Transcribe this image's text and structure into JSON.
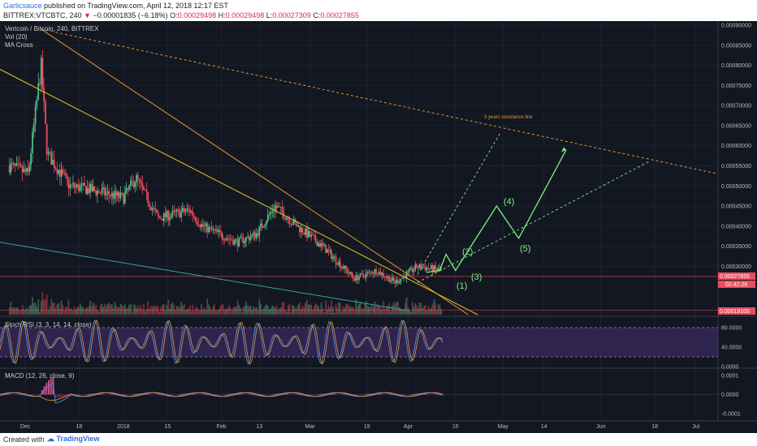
{
  "header": {
    "author": "Garlicsauce",
    "published": "published on TradingView.com, April 12, 2018 12:17 EST",
    "symbol": "BITTREX:VTCBTC, 240",
    "change_arrow": "▼",
    "change": "−0.00001835 (−6.18%)",
    "o_label": "O:",
    "o_value": "0.00029498",
    "h_label": "H:",
    "h_value": "0.00029498",
    "l_label": "L:",
    "l_value": "0.00027309",
    "c_label": "C:",
    "c_value": "0.00027855"
  },
  "footer": {
    "created": "Created with",
    "brand": "TradingView"
  },
  "colors": {
    "bg": "#131722",
    "up": "#53b987",
    "down": "#eb4d5c",
    "wave": "#7df27d",
    "resistance": "#e8962a",
    "yellow": "#e6c627",
    "teal": "#2ea8a0",
    "stoch": "#7b5ca8"
  },
  "chart_data": [
    {
      "type": "candlestick",
      "title": "Vertcoin / Bitcoin, 240, BITTREX",
      "indicators": [
        "Vol (20)",
        "MA Cross"
      ],
      "y_ticks": [
        "0.00090000",
        "0.00085000",
        "0.00080000",
        "0.00075000",
        "0.00070000",
        "0.00065000",
        "0.00060000",
        "0.00055000",
        "0.00050000",
        "0.00045000",
        "0.00040000",
        "0.00035000",
        "0.00030000"
      ],
      "ylim": [
        0.00018,
        0.00091
      ],
      "last_price": "0.00027855",
      "countdown": "02:42:26",
      "low_label": "0.00019105",
      "x_ticks": [
        "Dec",
        "18",
        "2018",
        "15",
        "Feb",
        "13",
        "Mar",
        "19",
        "Apr",
        "16",
        "May",
        "14",
        "Jun",
        "18",
        "Jul"
      ],
      "approx_path": [
        {
          "date": "2017-11-26",
          "value": 0.00055
        },
        {
          "date": "2017-12-02",
          "value": 0.00053
        },
        {
          "date": "2017-12-06",
          "value": 0.0008
        },
        {
          "date": "2017-12-08",
          "value": 0.00058
        },
        {
          "date": "2017-12-15",
          "value": 0.0005
        },
        {
          "date": "2017-12-22",
          "value": 0.00049
        },
        {
          "date": "2018-01-01",
          "value": 0.00047
        },
        {
          "date": "2018-01-05",
          "value": 0.00052
        },
        {
          "date": "2018-01-12",
          "value": 0.00042
        },
        {
          "date": "2018-01-22",
          "value": 0.00044
        },
        {
          "date": "2018-01-26",
          "value": 0.0004
        },
        {
          "date": "2018-02-06",
          "value": 0.00036
        },
        {
          "date": "2018-02-12",
          "value": 0.00038
        },
        {
          "date": "2018-02-18",
          "value": 0.00045
        },
        {
          "date": "2018-02-25",
          "value": 0.0004
        },
        {
          "date": "2018-03-05",
          "value": 0.00035
        },
        {
          "date": "2018-03-15",
          "value": 0.00027
        },
        {
          "date": "2018-03-22",
          "value": 0.00029
        },
        {
          "date": "2018-03-28",
          "value": 0.00026
        },
        {
          "date": "2018-04-04",
          "value": 0.0003
        },
        {
          "date": "2018-04-12",
          "value": 0.00029
        }
      ],
      "annotations": {
        "resistance_label": "3 years resistance line",
        "waves": [
          "(1)",
          "(2)",
          "(3)",
          "(4)",
          "(5)"
        ]
      }
    },
    {
      "type": "line",
      "title": "Stoch RSI (3, 3, 14, 14, close)",
      "y_ticks": [
        "80.0000",
        "40.0000",
        "0.0000"
      ],
      "ylim": [
        0,
        100
      ]
    },
    {
      "type": "line",
      "title": "MACD (12, 26, close, 9)",
      "y_ticks": [
        "0.0001",
        "0.0000",
        "-0.0001"
      ],
      "ylim": [
        -0.00013,
        0.00013
      ]
    }
  ]
}
